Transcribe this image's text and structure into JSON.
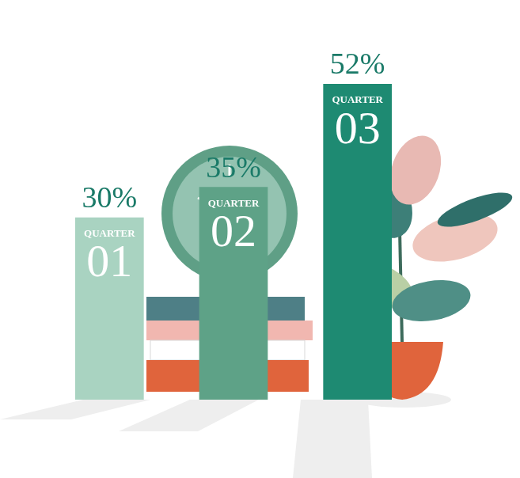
{
  "chart_data": {
    "type": "bar",
    "categories": [
      "QUARTER 01",
      "QUARTER 02",
      "QUARTER 03"
    ],
    "values": [
      30,
      35,
      52
    ],
    "value_labels": [
      "30%",
      "35%",
      "52%"
    ],
    "colors": [
      "#a9d3c1",
      "#5ea287",
      "#1e8a72"
    ],
    "data_labels": true,
    "tick_labels": false,
    "grid": false
  }
}
